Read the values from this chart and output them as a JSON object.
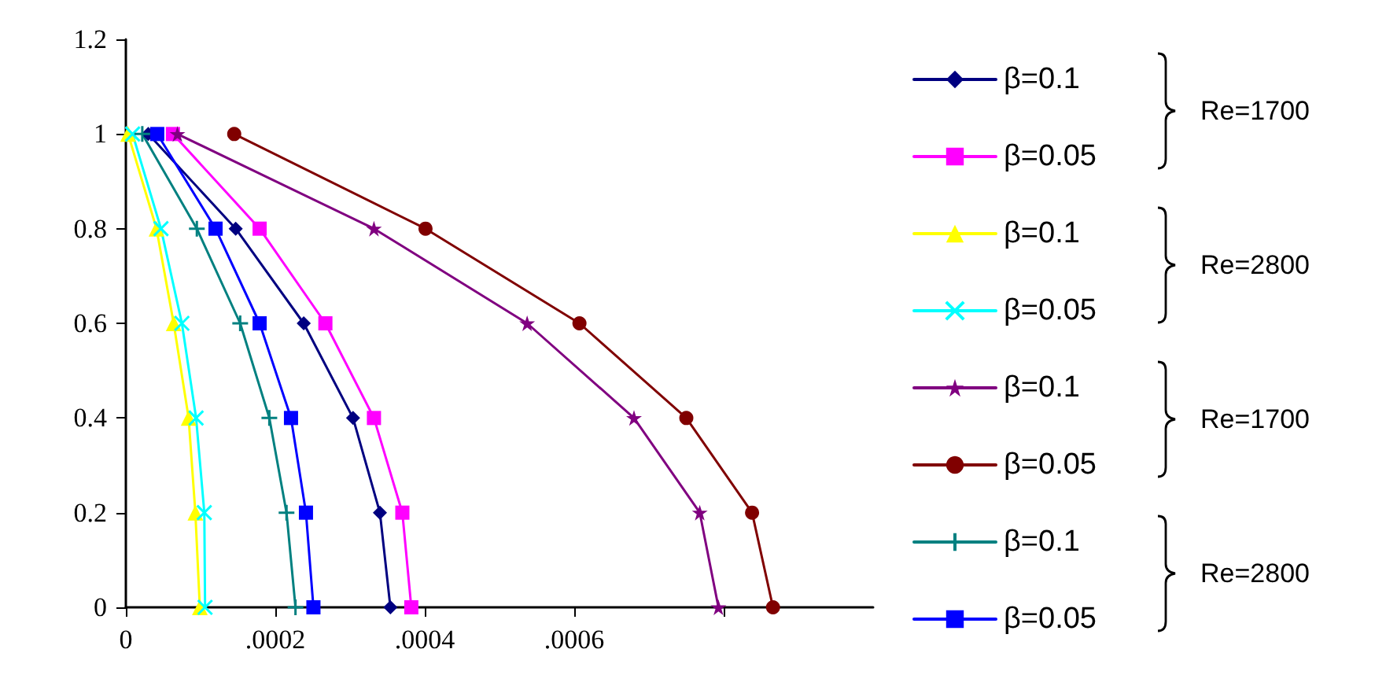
{
  "chart_data": {
    "type": "line",
    "xlim": [
      0,
      0.001
    ],
    "xticks": [
      0,
      {
        "value": 0.0002,
        "label": ".0002"
      },
      {
        "value": 0.0004,
        "label": ".0004"
      },
      {
        "value": 0.0006,
        "label": ".0006"
      },
      {
        "value": 0.0008,
        "label": null
      }
    ],
    "ylim": [
      0,
      1.2
    ],
    "yticks": [
      0,
      0.2,
      0.4,
      0.6,
      0.8,
      1,
      1.2
    ],
    "grid": false,
    "legend": "right",
    "series": [
      {
        "name": "β=0.1",
        "color": "#000080",
        "marker": "diamond",
        "x": [
          3e-05,
          0.000147,
          0.000238,
          0.000304,
          0.00034,
          0.000354
        ],
        "values": [
          1,
          0.8,
          0.6,
          0.4,
          0.2,
          0
        ]
      },
      {
        "name": "β=0.05",
        "color": "#ff00ff",
        "marker": "square",
        "x": [
          6.3e-05,
          0.000179,
          0.000267,
          0.000332,
          0.00037,
          0.000382
        ],
        "values": [
          1,
          0.8,
          0.6,
          0.4,
          0.2,
          0
        ]
      },
      {
        "name": "β=0.1",
        "color": "#ffff00",
        "marker": "triangle",
        "x": [
          3e-06,
          4.1e-05,
          6.4e-05,
          8.4e-05,
          9.3e-05,
          9.9e-05
        ],
        "values": [
          1,
          0.8,
          0.6,
          0.4,
          0.2,
          0
        ]
      },
      {
        "name": "β=0.05",
        "color": "#00ffff",
        "marker": "cross",
        "x": [
          9e-06,
          4.7e-05,
          7.5e-05,
          9.4e-05,
          0.000105,
          0.000106
        ],
        "values": [
          1,
          0.8,
          0.6,
          0.4,
          0.2,
          0
        ]
      },
      {
        "name": "β=0.1",
        "color": "#800080",
        "marker": "star",
        "x": [
          6.9e-05,
          0.000332,
          0.000537,
          0.00068,
          0.000768,
          0.000793
        ],
        "values": [
          1,
          0.8,
          0.6,
          0.4,
          0.2,
          0
        ]
      },
      {
        "name": "β=0.05",
        "color": "#800000",
        "marker": "circle",
        "x": [
          0.000145,
          0.000401,
          0.000607,
          0.00075,
          0.000838,
          0.000866
        ],
        "values": [
          1,
          0.8,
          0.6,
          0.4,
          0.2,
          0
        ]
      },
      {
        "name": "β=0.1",
        "color": "#008080",
        "marker": "plus",
        "x": [
          2.2e-05,
          9.5e-05,
          0.000153,
          0.000192,
          0.000215,
          0.000227
        ],
        "values": [
          1,
          0.8,
          0.6,
          0.4,
          0.2,
          0
        ]
      },
      {
        "name": "β=0.05",
        "color": "#0000ff",
        "marker": "square",
        "x": [
          4.2e-05,
          0.00012,
          0.000179,
          0.000221,
          0.000241,
          0.000251
        ],
        "values": [
          1,
          0.8,
          0.6,
          0.4,
          0.2,
          0
        ]
      }
    ],
    "annotations": [
      "Re=1700",
      "Re=2800",
      "Re=1700",
      "Re=2800"
    ]
  }
}
